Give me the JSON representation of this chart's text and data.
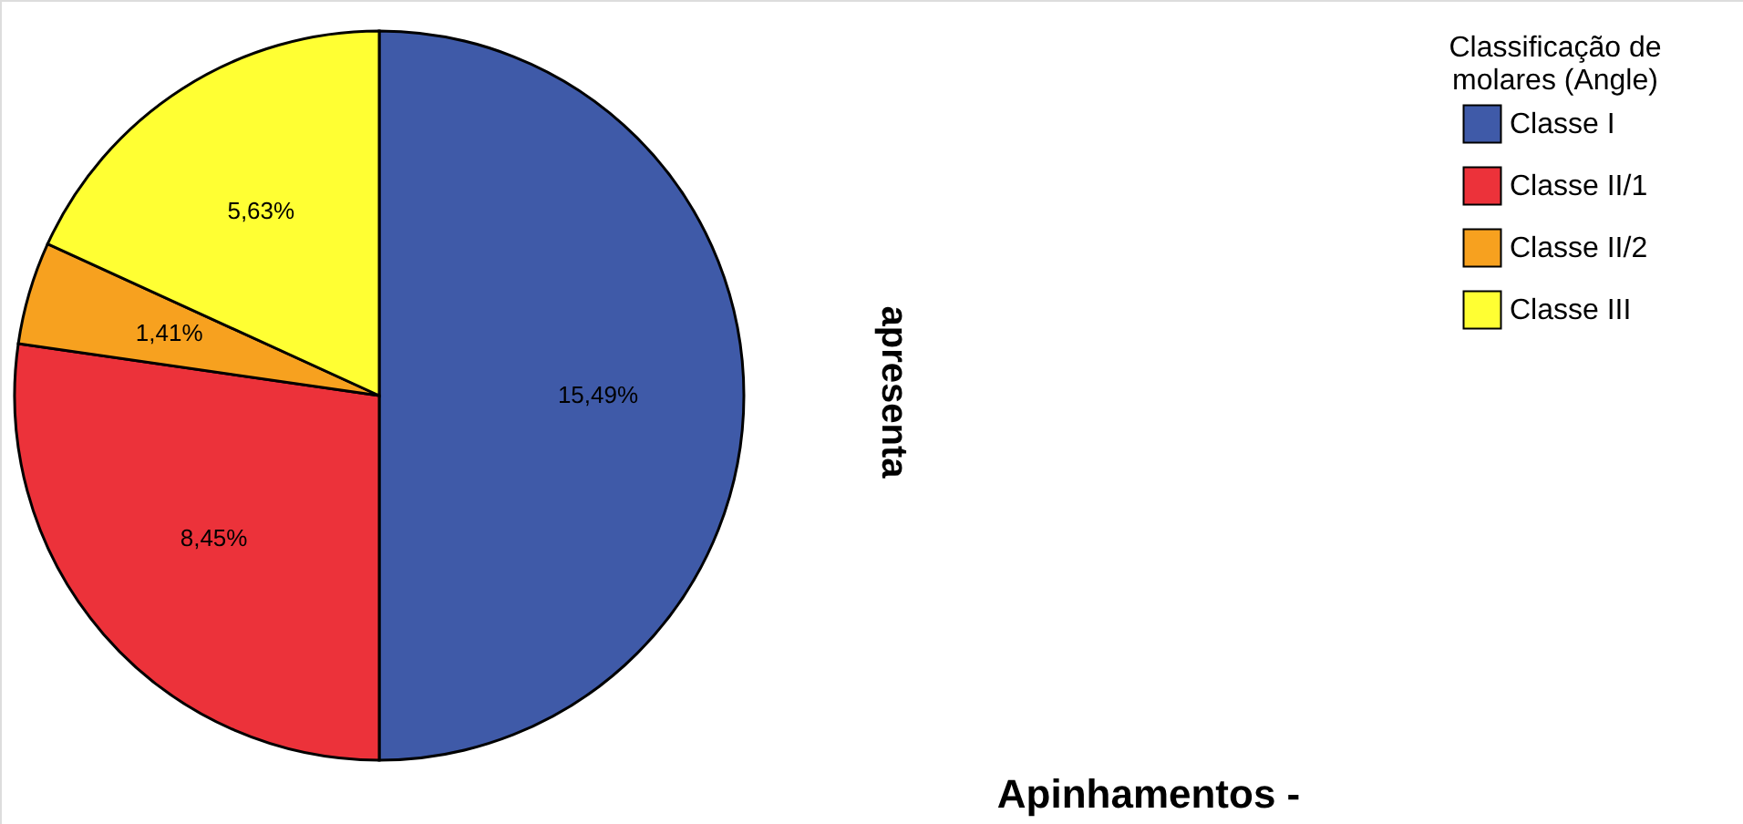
{
  "chart_data": {
    "type": "pie",
    "categories": [
      "Classe I",
      "Classe II/1",
      "Classe II/2",
      "Classe III"
    ],
    "values": [
      15.49,
      8.45,
      1.41,
      5.63
    ],
    "colors": [
      "#3f5aa8",
      "#ec323a",
      "#f7a11f",
      "#ffff33"
    ],
    "value_labels": [
      "15,49%",
      "8,45%",
      "1,41%",
      "5,63%"
    ],
    "legend_title": "Classificação de\nmolares (Angle)",
    "legend": "top right",
    "annotations": [
      "apresenta",
      "Apinhamentos -"
    ]
  }
}
